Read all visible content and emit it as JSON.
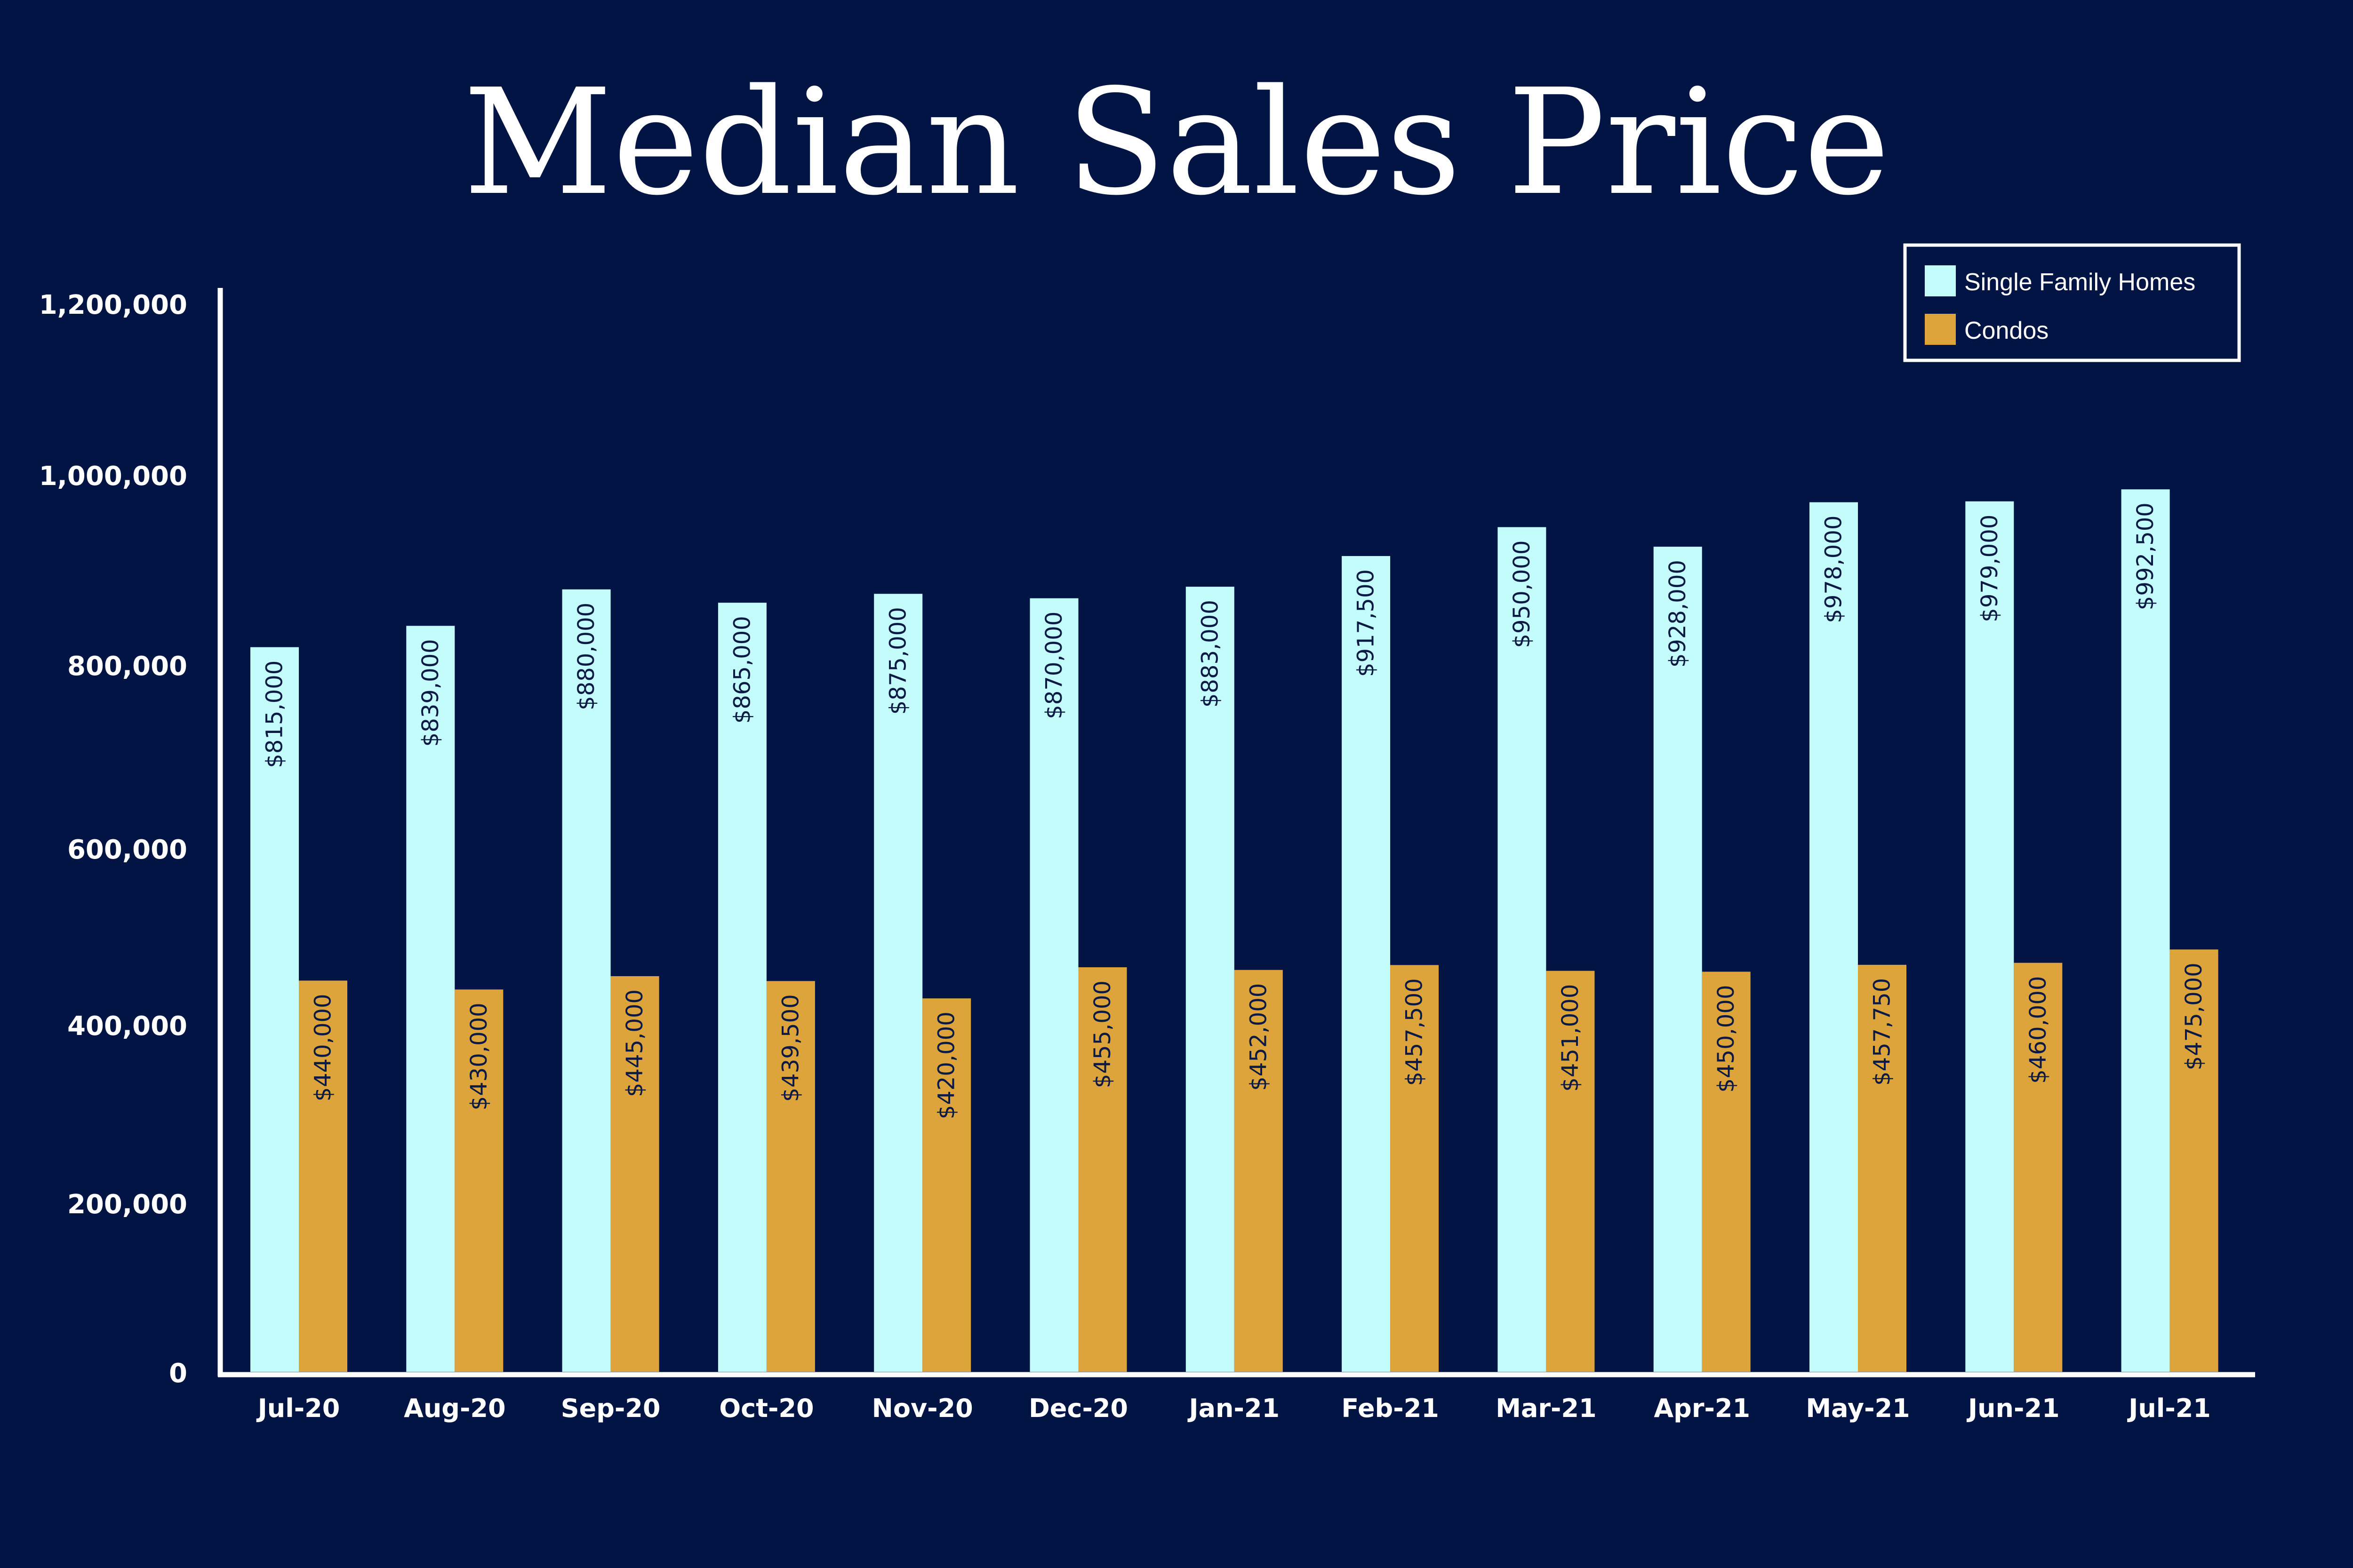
{
  "colors": {
    "background": "#021443",
    "single_family": "#c4fbfb",
    "condos": "#dea43c",
    "axis": "#ffffff",
    "value_label": "#0b1a44"
  },
  "chart_data": {
    "type": "bar",
    "title": "Median Sales Price",
    "categories": [
      "Jul-20",
      "Aug-20",
      "Sep-20",
      "Oct-20",
      "Nov-20",
      "Dec-20",
      "Jan-21",
      "Feb-21",
      "Mar-21",
      "Apr-21",
      "May-21",
      "Jun-21",
      "Jul-21"
    ],
    "series": [
      {
        "name": "Single Family Homes",
        "color": "#c4fbfb",
        "values": [
          815000,
          839000,
          880000,
          865000,
          875000,
          870000,
          883000,
          917500,
          950000,
          928000,
          978000,
          979000,
          992500
        ],
        "labels": [
          "$815,000",
          "$839,000",
          "$880,000",
          "$865,000",
          "$875,000",
          "$870,000",
          "$883,000",
          "$917,500",
          "$950,000",
          "$928,000",
          "$978,000",
          "$979,000",
          "$992,500"
        ]
      },
      {
        "name": "Condos",
        "color": "#dea43c",
        "values": [
          440000,
          430000,
          445000,
          439500,
          420000,
          455000,
          452000,
          457500,
          451000,
          450000,
          457750,
          460000,
          475000
        ],
        "labels": [
          "$440,000",
          "$430,000",
          "$445,000",
          "$439,500",
          "$420,000",
          "$455,000",
          "$452,000",
          "$457,500",
          "$451,000",
          "$450,000",
          "$457,750",
          "$460,000",
          "$475,000"
        ]
      }
    ],
    "yticks": [
      0,
      200000,
      400000,
      600000,
      800000,
      1000000,
      1200000
    ],
    "ytick_labels": [
      "0",
      "200,000",
      "400,000",
      "600,000",
      "800,000",
      "1,000,000",
      "1,200,000"
    ],
    "ylim": [
      0,
      1200000
    ],
    "xlabel": "",
    "ylabel": "",
    "grid": false,
    "legend_position": "top-right"
  }
}
